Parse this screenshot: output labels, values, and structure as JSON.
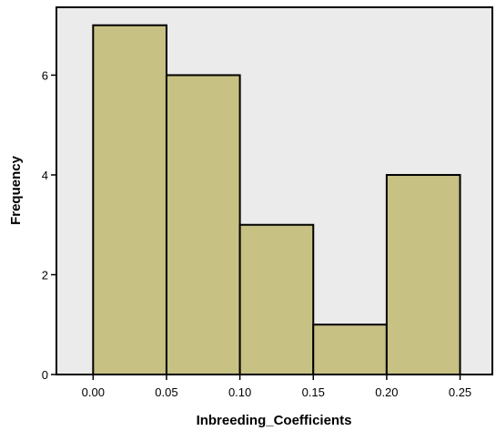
{
  "chart_data": {
    "type": "bar",
    "subtype": "histogram",
    "title": "",
    "xlabel": "Inbreeding_Coefficients",
    "ylabel": "Frequency",
    "bins": [
      {
        "start": 0.0,
        "end": 0.05,
        "count": 7
      },
      {
        "start": 0.05,
        "end": 0.1,
        "count": 6
      },
      {
        "start": 0.1,
        "end": 0.15,
        "count": 3
      },
      {
        "start": 0.15,
        "end": 0.2,
        "count": 1
      },
      {
        "start": 0.2,
        "end": 0.25,
        "count": 4
      }
    ],
    "xlim": [
      -0.025,
      0.272
    ],
    "ylim": [
      0,
      7.36
    ],
    "xticks": [
      0.0,
      0.05,
      0.1,
      0.15,
      0.2,
      0.25
    ],
    "xtick_labels": [
      "0.00",
      "0.05",
      "0.10",
      "0.15",
      "0.20",
      "0.25"
    ],
    "yticks": [
      0,
      2,
      4,
      6
    ],
    "ytick_labels": [
      "0",
      "2",
      "4",
      "6"
    ],
    "grid": false,
    "legend": "none",
    "colors": {
      "bar_fill": "#c7c184",
      "bar_stroke": "#000000",
      "plot_background": "#ebebeb",
      "page_background": "#ffffff"
    }
  }
}
